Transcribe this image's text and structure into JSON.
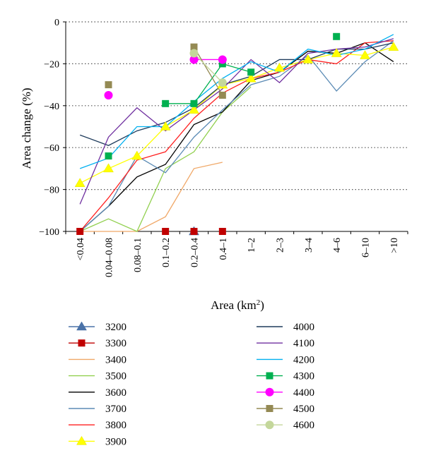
{
  "chart_data": {
    "type": "line",
    "title": "",
    "xlabel": "Area (km",
    "xlabel_sup": "2",
    "xlabel_close": ")",
    "ylabel": "Area change (%)",
    "ylim": [
      -100,
      0
    ],
    "yticks": [
      0,
      -20,
      -40,
      -60,
      -80,
      -100
    ],
    "categories": [
      "<0.04",
      "0.04–0.08",
      "0.08–0.1",
      "0.1–0.2",
      "0.2–0.4",
      "0.4–1",
      "1–2",
      "2–3",
      "3–4",
      "4–6",
      "6–10",
      ">10"
    ],
    "grid": "horizontal dotted",
    "legend_position": "bottom",
    "series": [
      {
        "name": "3200",
        "color": "#4a72a8",
        "marker": "triangle",
        "line": true,
        "values": [
          null,
          null,
          null,
          null,
          -100,
          null,
          null,
          null,
          null,
          null,
          null,
          null
        ]
      },
      {
        "name": "3300",
        "color": "#c00000",
        "marker": "square",
        "line": false,
        "values": [
          -100,
          null,
          null,
          -100,
          -100,
          -100,
          null,
          null,
          null,
          null,
          null,
          null
        ]
      },
      {
        "name": "3400",
        "color": "#f0a868",
        "marker": "none",
        "line": true,
        "values": [
          -100,
          -100,
          -100,
          -93,
          -70,
          -67,
          null,
          null,
          null,
          null,
          null,
          null
        ]
      },
      {
        "name": "3500",
        "color": "#92d050",
        "marker": "none",
        "line": true,
        "values": [
          -100,
          -94,
          -100,
          -70,
          -62,
          -43,
          -31,
          null,
          null,
          null,
          null,
          null
        ]
      },
      {
        "name": "3600",
        "color": "#000000",
        "marker": "none",
        "line": true,
        "values": [
          -100,
          -88,
          -74,
          -68,
          -49,
          -43,
          -28,
          -24,
          -14,
          -15,
          -10,
          -19
        ]
      },
      {
        "name": "3700",
        "color": "#5b8bb5",
        "marker": "none",
        "line": true,
        "values": [
          -100,
          -88,
          -64,
          -72,
          -55,
          -42,
          -30,
          -26,
          -16,
          -33,
          -19,
          -9
        ]
      },
      {
        "name": "3800",
        "color": "#ff2020",
        "marker": "none",
        "line": true,
        "values": [
          -100,
          -84,
          -66,
          -62,
          -46,
          -34,
          -27,
          -24,
          -18,
          -20,
          -10,
          -9
        ]
      },
      {
        "name": "3900",
        "color": "#ffff00",
        "marker": "triangle",
        "line": true,
        "values": [
          -77,
          -70,
          -64,
          -50,
          -42,
          -30,
          -27,
          -22,
          -18,
          -15,
          -16,
          -12
        ]
      },
      {
        "name": "4000",
        "color": "#1f3c5c",
        "marker": "none",
        "line": true,
        "values": [
          -54,
          -59,
          -52,
          -48,
          -41,
          -30,
          -26,
          -18,
          -18,
          -13,
          -13,
          -10
        ]
      },
      {
        "name": "4100",
        "color": "#7030a0",
        "marker": "none",
        "line": true,
        "values": [
          -87,
          -55,
          -41,
          -52,
          -42,
          -32,
          -18,
          -29,
          -15,
          -13,
          -12,
          -8
        ]
      },
      {
        "name": "4200",
        "color": "#00b0f0",
        "marker": "none",
        "line": true,
        "values": [
          -70,
          -65,
          -50,
          -50,
          -38,
          -27,
          -19,
          -24,
          -13,
          -16,
          -13,
          -6
        ]
      },
      {
        "name": "4300",
        "color": "#00b050",
        "marker": "square",
        "line": true,
        "values": [
          null,
          -64,
          null,
          -39,
          -39,
          -20,
          -24,
          null,
          null,
          -7,
          null,
          null
        ]
      },
      {
        "name": "4400",
        "color": "#ff00ff",
        "marker": "circle",
        "line": true,
        "values": [
          null,
          -35,
          null,
          null,
          -18,
          -18,
          null,
          null,
          null,
          null,
          null,
          null
        ]
      },
      {
        "name": "4500",
        "color": "#948a54",
        "marker": "square",
        "line": true,
        "values": [
          null,
          -30,
          null,
          null,
          -12,
          -35,
          null,
          null,
          null,
          null,
          null,
          null
        ]
      },
      {
        "name": "4600",
        "color": "#c4d79b",
        "marker": "circle",
        "line": true,
        "values": [
          null,
          null,
          null,
          null,
          -15,
          -29,
          null,
          null,
          null,
          null,
          null,
          null
        ]
      }
    ]
  }
}
